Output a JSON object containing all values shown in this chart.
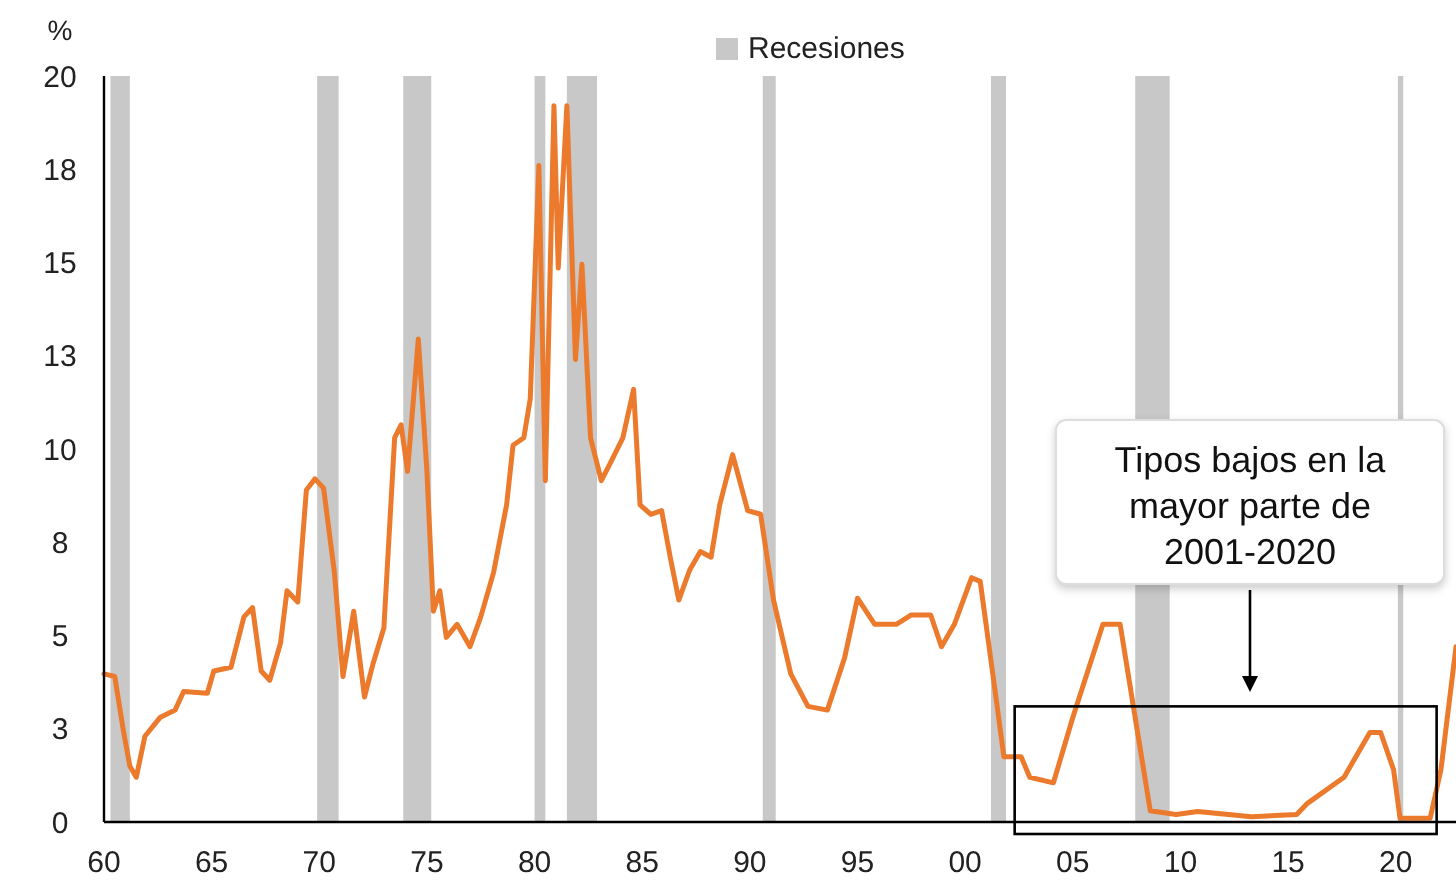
{
  "chart_data": {
    "type": "line",
    "ylabel": "%",
    "legend": "top",
    "x": [
      1960,
      1960.5,
      1960.9,
      1961.2,
      1961.5,
      1961.9,
      1962.6,
      1963.3,
      1963.7,
      1964.8,
      1965.1,
      1965.9,
      1966.5,
      1966.9,
      1967.3,
      1967.7,
      1968.2,
      1968.5,
      1969,
      1969.4,
      1969.8,
      1970.2,
      1970.7,
      1971.1,
      1971.6,
      1972.1,
      1972.5,
      1973,
      1973.5,
      1973.8,
      1974.1,
      1974.6,
      1975,
      1975.3,
      1975.6,
      1975.9,
      1976.4,
      1977,
      1977.5,
      1978.1,
      1978.7,
      1979,
      1979.5,
      1979.8,
      1980.2,
      1980.5,
      1980.9,
      1981.1,
      1981.5,
      1981.9,
      1982.2,
      1982.6,
      1983.1,
      1983.5,
      1984.1,
      1984.6,
      1984.9,
      1985.4,
      1985.9,
      1986.3,
      1986.7,
      1987.2,
      1987.7,
      1988.2,
      1988.6,
      1989.2,
      1989.9,
      1990.5,
      1991.1,
      1991.9,
      1992.7,
      1993.6,
      1994.4,
      1995,
      1995.8,
      1996.8,
      1997.5,
      1998.4,
      1998.9,
      1999.5,
      2000.3,
      2000.7,
      2001.3,
      2001.8,
      2002.6,
      2003,
      2004.1,
      2005,
      2006.4,
      2007.2,
      2007.8,
      2008.6,
      2009.8,
      2010.8,
      2013.3,
      2015.4,
      2015.9,
      2017.6,
      2018.8,
      2019.3,
      2019.9,
      2020.2,
      2021.6,
      2022.1,
      2022.8
    ],
    "series": [
      {
        "color": "#ec7a2c",
        "values": [
          3.97,
          3.9,
          2.45,
          1.5,
          1.2,
          2.3,
          2.8,
          3.0,
          3.5,
          3.45,
          4.05,
          4.15,
          5.5,
          5.75,
          4.05,
          3.8,
          4.8,
          6.2,
          5.9,
          8.9,
          9.2,
          8.95,
          6.7,
          3.9,
          5.65,
          3.35,
          4.25,
          5.2,
          10.3,
          10.65,
          9.4,
          12.95,
          9.4,
          5.65,
          6.2,
          4.95,
          5.3,
          4.7,
          5.5,
          6.7,
          8.5,
          10.1,
          10.3,
          11.35,
          17.6,
          9.15,
          19.2,
          14.85,
          19.2,
          12.4,
          14.95,
          10.3,
          9.15,
          9.6,
          10.3,
          11.6,
          8.5,
          8.25,
          8.35,
          7.1,
          5.95,
          6.75,
          7.25,
          7.1,
          8.5,
          9.85,
          8.35,
          8.25,
          5.95,
          3.97,
          3.1,
          3.0,
          4.4,
          6.0,
          5.3,
          5.3,
          5.55,
          5.55,
          4.7,
          5.3,
          6.55,
          6.45,
          3.9,
          1.75,
          1.75,
          1.2,
          1.05,
          2.8,
          5.3,
          5.3,
          3.15,
          0.3,
          0.2,
          0.28,
          0.14,
          0.2,
          0.5,
          1.2,
          2.4,
          2.4,
          1.4,
          0.1,
          0.1,
          1.4,
          4.7
        ]
      }
    ],
    "xlim": [
      1960,
      2022.8
    ],
    "xticks": [
      {
        "value": 1960,
        "label": "60"
      },
      {
        "value": 1965,
        "label": "65"
      },
      {
        "value": 1970,
        "label": "70"
      },
      {
        "value": 1975,
        "label": "75"
      },
      {
        "value": 1980,
        "label": "80"
      },
      {
        "value": 1985,
        "label": "85"
      },
      {
        "value": 1990,
        "label": "90"
      },
      {
        "value": 1995,
        "label": "95"
      },
      {
        "value": 2000,
        "label": "00"
      },
      {
        "value": 2005,
        "label": "05"
      },
      {
        "value": 2010,
        "label": "10"
      },
      {
        "value": 2015,
        "label": "15"
      },
      {
        "value": 2020,
        "label": "20"
      }
    ],
    "ylim": [
      0,
      20
    ],
    "yticks": [
      0,
      {
        "value": 2.5,
        "label": "3"
      },
      5,
      {
        "value": 7.5,
        "label": "8"
      },
      10,
      {
        "value": 12.5,
        "label": "13"
      },
      15,
      {
        "value": 17.5,
        "label": "18"
      },
      20
    ],
    "bands": [
      {
        "axis": "x",
        "from": 1960.3,
        "to": 1961.2,
        "label": "Recesiones",
        "color": "#c8c8c8"
      },
      {
        "axis": "x",
        "from": 1969.9,
        "to": 1970.9,
        "color": "#c8c8c8"
      },
      {
        "axis": "x",
        "from": 1973.9,
        "to": 1975.2,
        "color": "#c8c8c8"
      },
      {
        "axis": "x",
        "from": 1980.0,
        "to": 1980.5,
        "color": "#c8c8c8"
      },
      {
        "axis": "x",
        "from": 1981.5,
        "to": 1982.9,
        "color": "#c8c8c8"
      },
      {
        "axis": "x",
        "from": 1990.6,
        "to": 1991.2,
        "color": "#c8c8c8"
      },
      {
        "axis": "x",
        "from": 2001.2,
        "to": 2001.9,
        "color": "#c8c8c8"
      },
      {
        "axis": "x",
        "from": 2007.9,
        "to": 2009.5,
        "color": "#c8c8c8"
      },
      {
        "axis": "x",
        "from": 2020.1,
        "to": 2020.35,
        "color": "#c8c8c8"
      }
    ],
    "annotations": [
      "Tipos bajos en la mayor parte de 2001-2020"
    ]
  }
}
